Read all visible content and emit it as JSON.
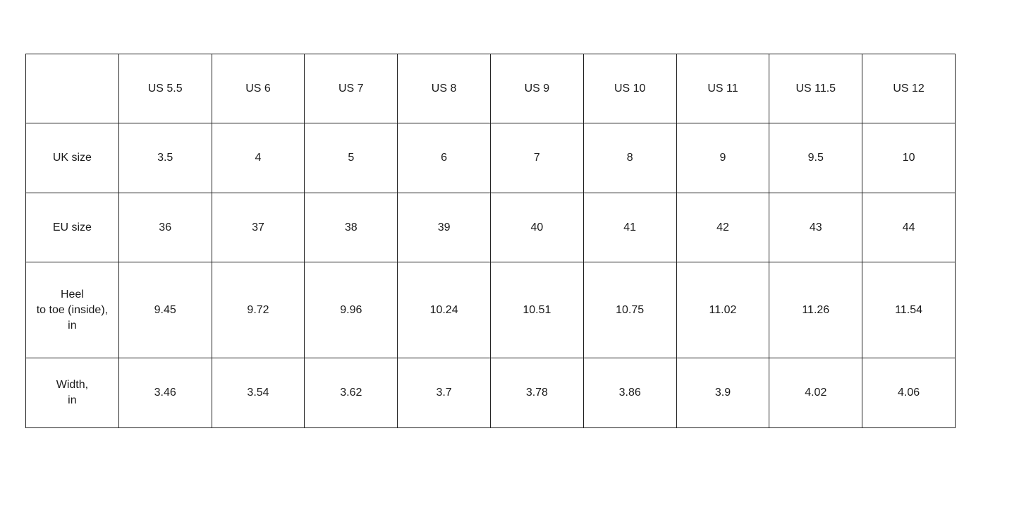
{
  "size_chart": {
    "header": [
      "",
      "US 5.5",
      "US 6",
      "US 7",
      "US 8",
      "US 9",
      "US 10",
      "US 11",
      "US 11.5",
      "US 12"
    ],
    "rows": [
      {
        "label": "UK size",
        "values": [
          "3.5",
          "4",
          "5",
          "6",
          "7",
          "8",
          "9",
          "9.5",
          "10"
        ]
      },
      {
        "label": "EU size",
        "values": [
          "36",
          "37",
          "38",
          "39",
          "40",
          "41",
          "42",
          "43",
          "44"
        ]
      },
      {
        "label": "Heel\nto toe (inside),\nin",
        "values": [
          "9.45",
          "9.72",
          "9.96",
          "10.24",
          "10.51",
          "10.75",
          "11.02",
          "11.26",
          "11.54"
        ]
      },
      {
        "label": "Width,\nin",
        "values": [
          "3.46",
          "3.54",
          "3.62",
          "3.7",
          "3.78",
          "3.86",
          "3.9",
          "4.02",
          "4.06"
        ]
      }
    ]
  }
}
